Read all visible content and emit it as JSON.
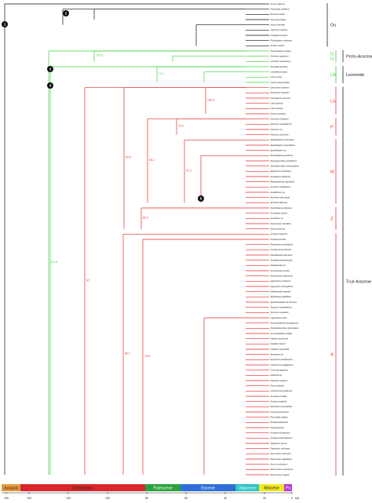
{
  "taxa": [
    "Acorus calamus",
    "Freycinetia multiflora",
    "Dioscorea alata",
    "Dioscorea villosa",
    "Alisma orientale",
    "Triglochin maritima",
    "Posidonia australis",
    "Potamogeton octandrus",
    "Zostera marina",
    "Gymnostachys anceps",
    "Orontium aquaticum",
    "Lysichiton americanus",
    "Spirodela polyrhiza",
    "Landoltia punctata",
    "Lemna minor",
    "Lemna aequinoctialis",
    "Dracontium asperum",
    "Dracontium dressleri",
    "Cyrtosperma merkusii",
    "Lasia spinosa",
    "Lasia spinosa",
    "Pothos scandens",
    "Anthurium rimbachii",
    "Anthurium andraeanum",
    "Anthurium sp.",
    "Anthurium amnicola",
    "Spathiphyllum floribundum",
    "Spathiphyllum phryniifolium",
    "Spathiphyllum sp.",
    "Rhodospatha guianensis",
    "Stenospermation pauciflorum",
    "Stenospermation multiovulatum",
    "Epipremnum flavifolium",
    "Scindapsus siamensis",
    "Rhaphidophora cryptantha",
    "Amydrium zippelianum",
    "Anadendrum sp.",
    "Monstera tuberculata",
    "Monstera deliciosa",
    "Stylochaeton puberulus",
    "Gonatopus boivinii",
    "Gonatopus sp.",
    "Zamioculcas zamiifolia",
    "Zamioculcas sp.",
    "Anubias congensis",
    "Culcasia striolata",
    "Philodendron wendlandii",
    "Homalomena pulvinata",
    "Zantedeschia rehmannii",
    "Zantedeschia aethiopica",
    "Zantedeschia sp.",
    "Anchomanes hookeri",
    "Anchomanes welwitschii",
    "Aglaonema modestum",
    "Aglaonema oblongifolium",
    "Dieffenbachia seguine",
    "Spathicarpa sagittifolia",
    "Synandrospadix vermitoxicus",
    "Taccarum weddellianum",
    "Taccarum caudatum",
    "Lagenandra ovata",
    "Schismatoglottis nicaraguensis",
    "Pseudodracontium lanceolatum",
    "Amorphophallus bulbifer",
    "Ulearum donburnsii",
    "Caladium bicolor",
    "Caladium humboldtii",
    "Syngonium sp.",
    "Syngonium podophyllum",
    "Xanthosoma sagittifolium",
    "Colocasia gigantea",
    "Peltandra sp.",
    "Peltandra virginica",
    "Pistia stratiotes",
    "Xanthosoma brasiliense",
    "Alocasia cucullata",
    "Alocasia longiloba",
    "Steudnera colocasiifolia",
    "Colocasia esculenta",
    "Remusatia vivipara",
    "Pinellia pedatisecta",
    "Pinellia ternata",
    "Arisaema erubescens",
    "Arisaema franchetianum",
    "Typhonium blumei",
    "Typhonium roxburghii",
    "Sauromatum venosum",
    "Sauromatum giganteum",
    "Arum concinnatum",
    "Dracunculus canariensis",
    "Dracunculus vulgaris"
  ],
  "node_values": [
    "121.8",
    "120.8",
    "100.9",
    "71.4",
    "72.9",
    "99.8",
    "97",
    "69.3",
    "72.1",
    "90.2",
    "57.1",
    "80.2",
    "80.1",
    "79.6"
  ],
  "node_markers": [
    "1",
    "2",
    "3",
    "4",
    "5"
  ],
  "groups": [
    {
      "label": "Ou",
      "color": "#222222"
    },
    {
      "label": "Proto-Araceae",
      "color": "#222222"
    },
    {
      "label": "Lemnoids",
      "color": "#222222"
    },
    {
      "label": "True Araceae",
      "color": "#222222"
    }
  ],
  "subgroups": [
    "G",
    "O",
    "LA",
    "La",
    "P",
    "M",
    "Z",
    "A"
  ],
  "colors": {
    "outgroup": "#111111",
    "green": "#3fd03f",
    "red": "#e8282a",
    "bracket_red": "#e83030"
  },
  "timescale": {
    "periods": [
      {
        "label": "Jurassic",
        "color": "#e89a3c",
        "text": "#222222"
      },
      {
        "label": "Cretaceous",
        "color": "#d9262a",
        "text": "#222222"
      },
      {
        "label": "Paleocene",
        "color": "#2aa33a",
        "text": "#ffffff"
      },
      {
        "label": "Eocene",
        "color": "#2d6fd6",
        "text": "#ffffff"
      },
      {
        "label": "Oligocene",
        "color": "#2cc4c4",
        "text": "#ffffff"
      },
      {
        "label": "Miocene",
        "color": "#f2e81e",
        "text": "#222222"
      },
      {
        "label": "Ps",
        "color": "#b83ad6",
        "text": "#ffffff"
      }
    ],
    "ticks": [
      "150",
      "140",
      "120",
      "100",
      "80",
      "60",
      "40",
      "20",
      "0"
    ],
    "unit": "Ma"
  }
}
